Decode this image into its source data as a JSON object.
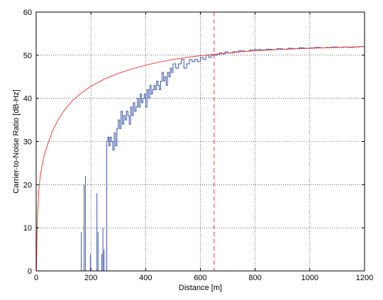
{
  "chart_data": {
    "type": "line",
    "title": "",
    "xlabel": "Distance [m]",
    "ylabel": "Carrier-to-Noise Ratio [dB-Hz]",
    "xlim": [
      0,
      1200
    ],
    "ylim": [
      0,
      60
    ],
    "xticks": [
      0,
      200,
      400,
      600,
      800,
      1000,
      1200
    ],
    "yticks": [
      0,
      10,
      20,
      30,
      40,
      50,
      60
    ],
    "grid": true,
    "vline": {
      "x": 650,
      "color": "#e8443a",
      "style": "dashed"
    },
    "series": [
      {
        "color": "#e8443a",
        "style": "solid",
        "x": [
          1,
          3,
          5,
          10,
          15,
          20,
          30,
          40,
          60,
          80,
          100,
          130,
          160,
          200,
          250,
          300,
          350,
          400,
          450,
          500,
          550,
          600,
          650,
          700,
          750,
          800,
          850,
          900,
          950,
          1000,
          1050,
          1100,
          1150,
          1200
        ],
        "y": [
          0,
          8,
          13,
          19,
          22,
          24,
          27,
          29,
          32.5,
          35,
          37,
          39.3,
          41,
          42.8,
          44.5,
          45.8,
          46.8,
          47.7,
          48.4,
          49.0,
          49.5,
          49.9,
          50.2,
          50.5,
          50.8,
          51.0,
          51.2,
          51.35,
          51.5,
          51.6,
          51.7,
          51.8,
          51.9,
          52.0
        ]
      },
      {
        "color": "#3b55a8",
        "style": "solid",
        "spikes": [
          [
            165,
            9
          ],
          [
            175,
            20
          ],
          [
            180,
            22
          ],
          [
            198,
            4
          ],
          [
            222,
            18
          ],
          [
            226,
            9
          ],
          [
            240,
            4
          ],
          [
            244,
            10
          ],
          [
            248,
            5
          ]
        ],
        "x": [
          255,
          258,
          262,
          266,
          270,
          275,
          280,
          285,
          290,
          295,
          300,
          305,
          310,
          315,
          320,
          325,
          330,
          335,
          340,
          345,
          350,
          355,
          360,
          365,
          370,
          375,
          380,
          385,
          390,
          395,
          400,
          405,
          410,
          415,
          420,
          425,
          430,
          435,
          440,
          445,
          450,
          455,
          460,
          465,
          470,
          475,
          480,
          485,
          490,
          495,
          500,
          510,
          520,
          530,
          540,
          550,
          560,
          570,
          580,
          590,
          600,
          610,
          620,
          630,
          640,
          650,
          660,
          670,
          680,
          690,
          700,
          720,
          740,
          760,
          780,
          800,
          820,
          840,
          860,
          880,
          900,
          920,
          940,
          960,
          980,
          1000,
          1020,
          1040,
          1060,
          1080,
          1100,
          1120,
          1140,
          1160,
          1180,
          1200
        ],
        "y": [
          0,
          30,
          31,
          29,
          31,
          30,
          28,
          32,
          29,
          33,
          35,
          33,
          37,
          34,
          36,
          35,
          37,
          36,
          34,
          38,
          36,
          39,
          37,
          38,
          40,
          38,
          41,
          39,
          40,
          41,
          38,
          42,
          40,
          43,
          41,
          42,
          43,
          42,
          44,
          43,
          42,
          44,
          46,
          44,
          45,
          43,
          46,
          45,
          47,
          46,
          48,
          47,
          48,
          49,
          47,
          48,
          49,
          48.5,
          49,
          48.5,
          49.5,
          49,
          50,
          49.5,
          50,
          50,
          50.2,
          50.5,
          50.3,
          50.8,
          50.5,
          50.8,
          51,
          50.9,
          51.2,
          51.3,
          51.2,
          51.4,
          51.3,
          51.5,
          51.4,
          51.6,
          51.5,
          51.7,
          51.6,
          51.7,
          51.8,
          51.7,
          51.8,
          51.9,
          51.8,
          51.9,
          51.8,
          51.9,
          52.0,
          51.9
        ]
      }
    ]
  }
}
